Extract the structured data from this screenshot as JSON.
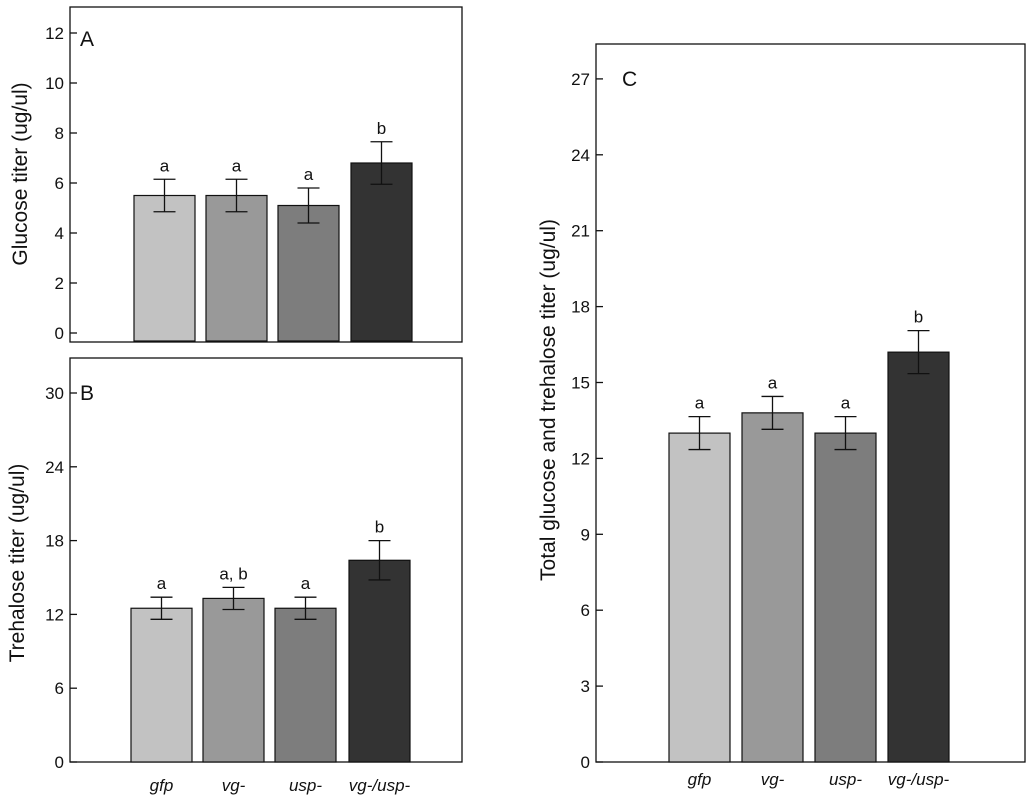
{
  "colors": [
    "#c2c2c2",
    "#999999",
    "#7d7d7d",
    "#333333"
  ],
  "chart_data": [
    {
      "panel": "A",
      "type": "bar",
      "ylabel": "Glucose titer (ug/ul)",
      "ylim": [
        0,
        13
      ],
      "yticks": [
        0,
        2,
        4,
        6,
        8,
        10,
        12
      ],
      "categories": [
        "gfp",
        "vg-",
        "usp-",
        "vg-/usp-"
      ],
      "values": [
        5.5,
        5.5,
        5.1,
        6.8
      ],
      "errors": [
        0.65,
        0.65,
        0.7,
        0.85
      ],
      "significance": [
        "a",
        "a",
        "a",
        "b"
      ]
    },
    {
      "panel": "B",
      "type": "bar",
      "ylabel": "Trehalose titer (ug/ul)",
      "ylim": [
        0,
        31
      ],
      "yticks": [
        0,
        6,
        12,
        18,
        24,
        30
      ],
      "categories": [
        "gfp",
        "vg-",
        "usp-",
        "vg-/usp-"
      ],
      "values": [
        12.5,
        13.3,
        12.5,
        16.4
      ],
      "errors": [
        0.9,
        0.9,
        0.9,
        1.6
      ],
      "significance": [
        "a",
        "a, b",
        "a",
        "b"
      ]
    },
    {
      "panel": "C",
      "type": "bar",
      "ylabel": "Total glucose and trehalose titer (ug/ul)",
      "ylim": [
        0,
        28.5
      ],
      "yticks": [
        0,
        3,
        6,
        9,
        12,
        15,
        18,
        21,
        24,
        27
      ],
      "categories": [
        "gfp",
        "vg-",
        "usp-",
        "vg-/usp-"
      ],
      "values": [
        13.0,
        13.8,
        13.0,
        16.2
      ],
      "errors": [
        0.65,
        0.65,
        0.65,
        0.85
      ],
      "significance": [
        "a",
        "a",
        "a",
        "b"
      ]
    }
  ]
}
